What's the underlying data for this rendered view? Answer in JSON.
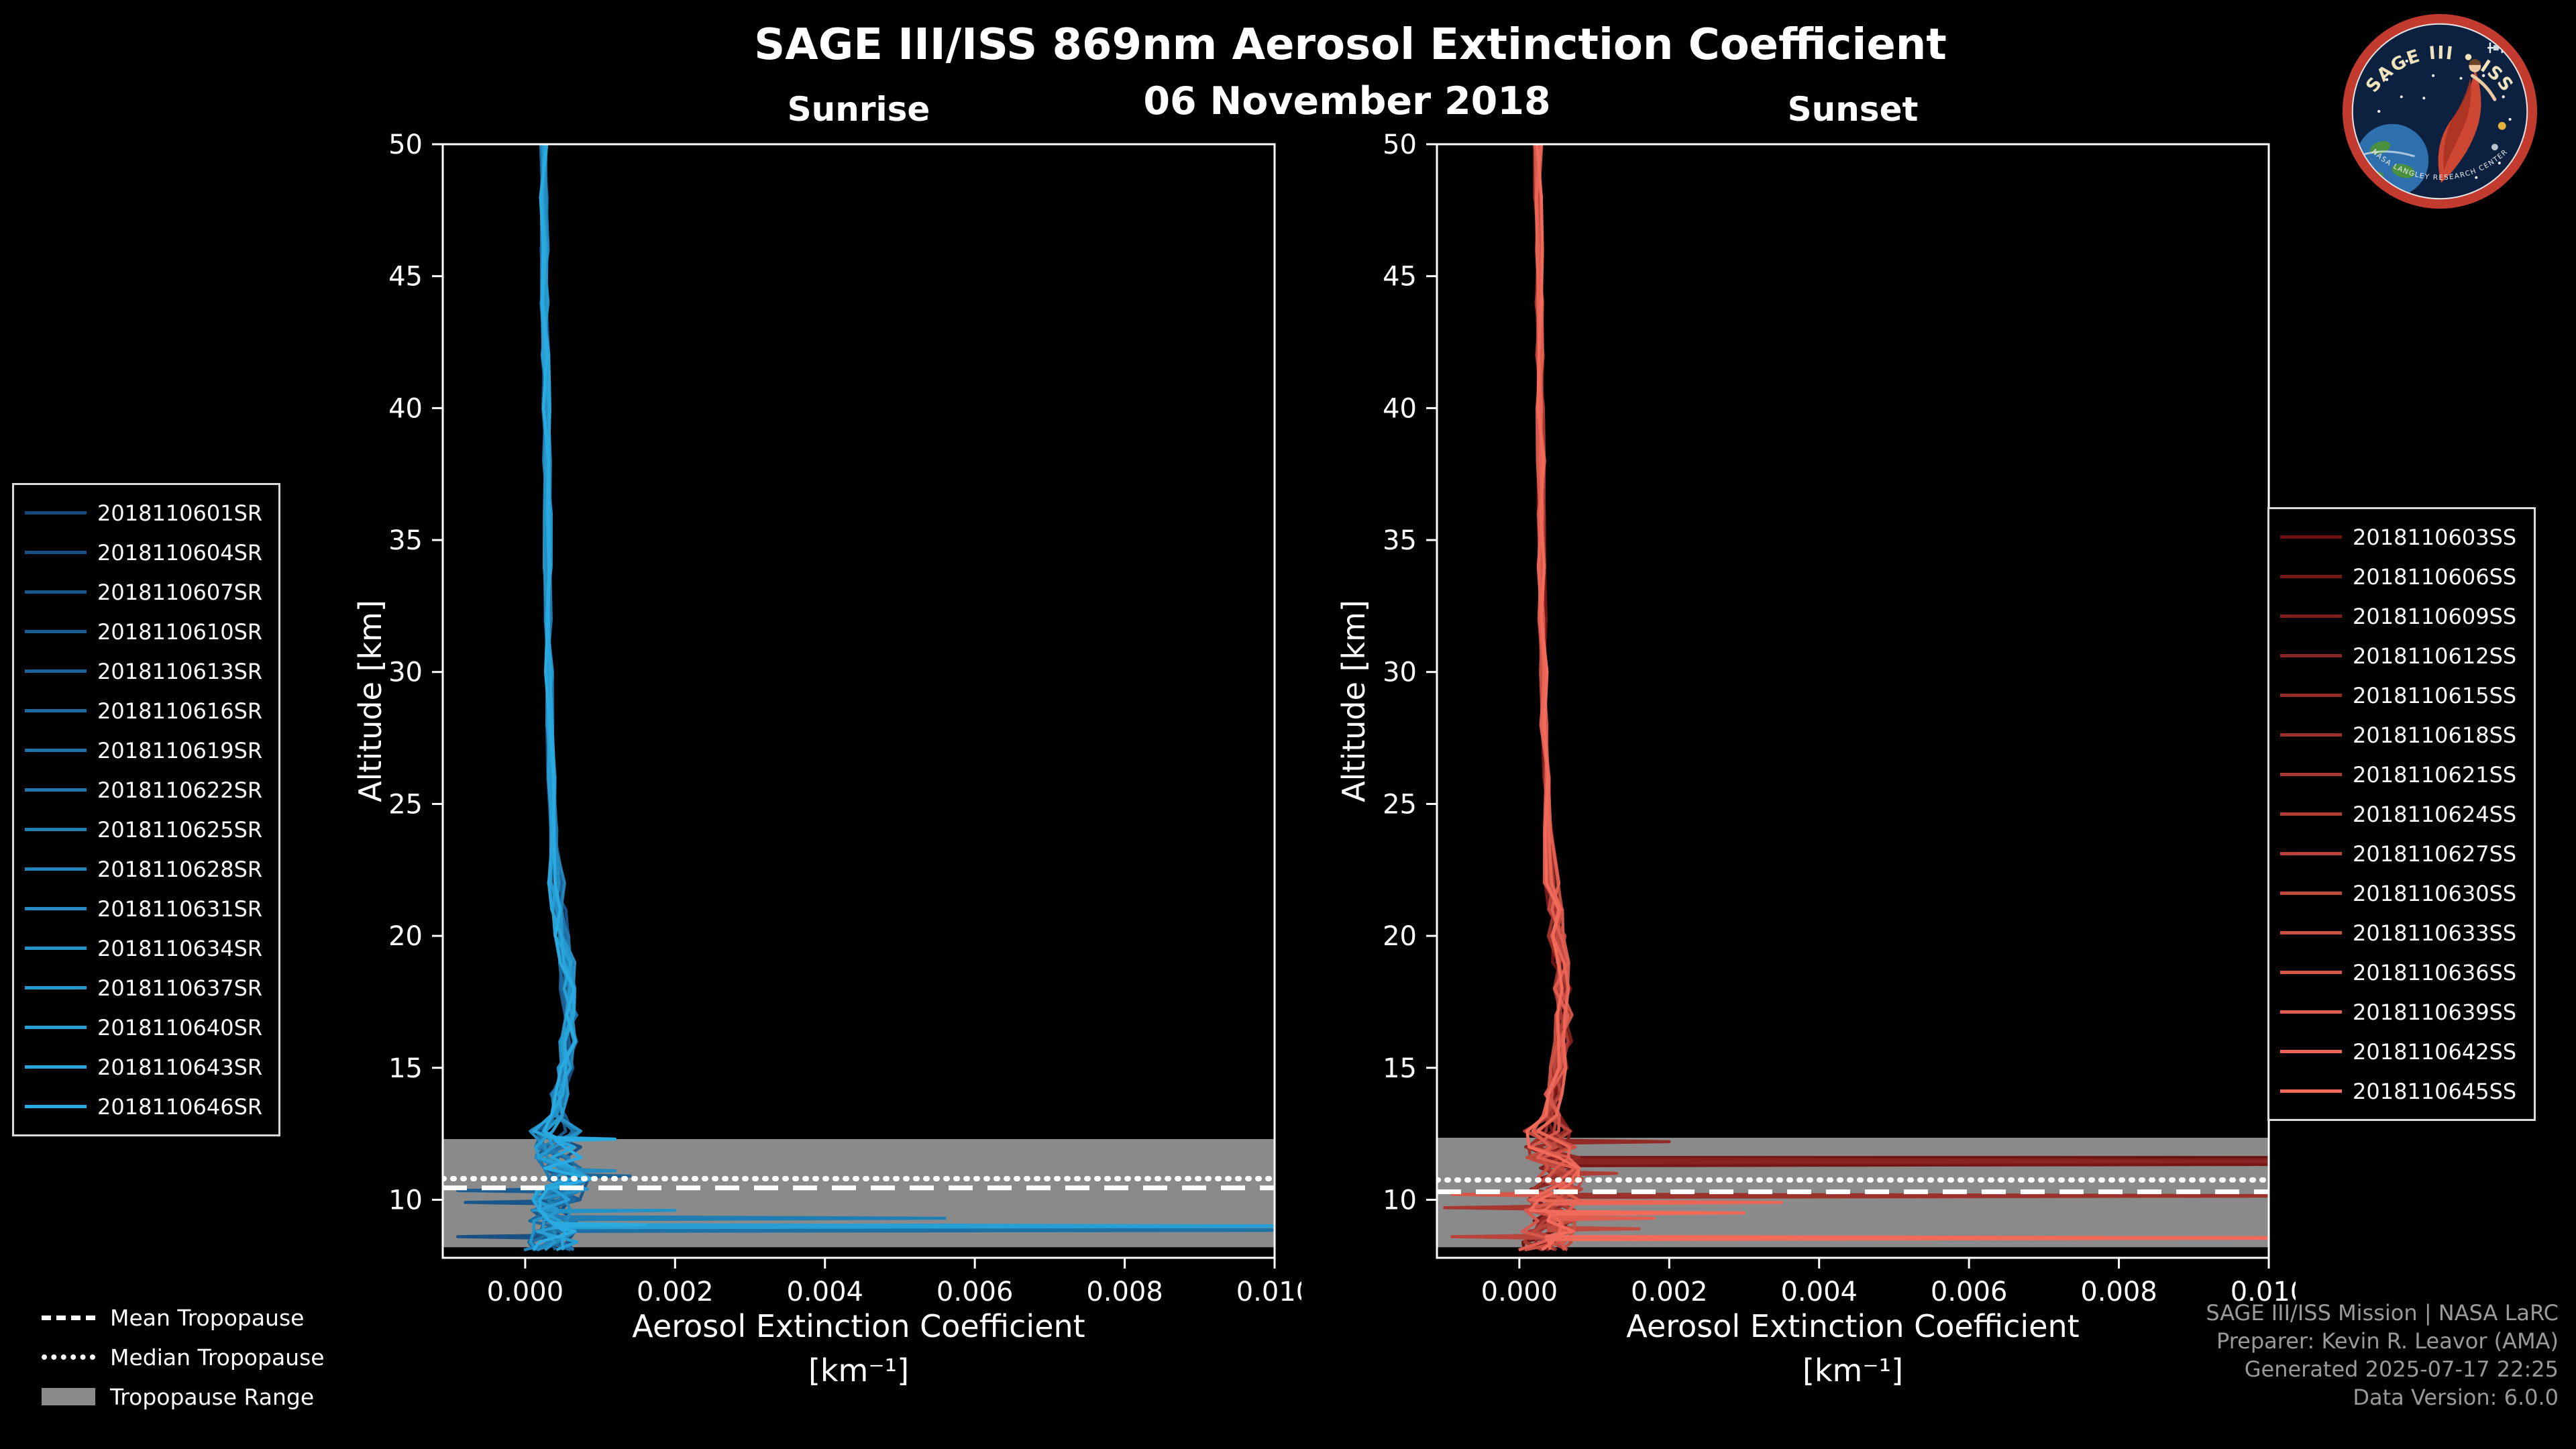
{
  "header": {
    "title": "SAGE III/ISS 869nm Aerosol Extinction Coefficient",
    "date": "06 November 2018"
  },
  "legend_tropopause": {
    "items": [
      {
        "style": "dashed",
        "label": "Mean Tropopause"
      },
      {
        "style": "dotted",
        "label": "Median Tropopause"
      },
      {
        "style": "band",
        "label": "Tropopause Range"
      }
    ]
  },
  "footer": {
    "lines": [
      "SAGE III/ISS Mission | NASA LaRC",
      "Preparer: Kevin R. Leavor (AMA)",
      "Generated 2025-07-17 22:25",
      "Data Version: 6.0.0"
    ]
  },
  "logo": {
    "title": "SAGE III • ISS",
    "arc_text": "NASA LANGLEY RESEARCH CENTER"
  },
  "chart_data": {
    "type": "line",
    "xlabel": "Aerosol Extinction Coefficient",
    "xlabel_units": "[km⁻¹]",
    "ylabel": "Altitude [km]",
    "xlim": [
      -0.0011,
      0.01
    ],
    "ylim": [
      7.8,
      50
    ],
    "xticks": [
      0,
      0.002,
      0.004,
      0.006,
      0.008,
      0.01
    ],
    "yticks": [
      10,
      15,
      20,
      25,
      30,
      35,
      40,
      45,
      50
    ],
    "grid": false,
    "legend_position": "outside",
    "tropopause_band_color": "#8a8a8a",
    "scatter": {
      "upper": 5e-05,
      "mid": 0.00012,
      "lower": 0.00035
    },
    "base_profile": [
      [
        50,
        0.00025
      ],
      [
        48,
        0.00025
      ],
      [
        46,
        0.00026
      ],
      [
        44,
        0.00026
      ],
      [
        42,
        0.00027
      ],
      [
        40,
        0.00028
      ],
      [
        38,
        0.00029
      ],
      [
        36,
        0.0003
      ],
      [
        34,
        0.0003
      ],
      [
        32,
        0.00031
      ],
      [
        30,
        0.00032
      ],
      [
        28,
        0.00033
      ],
      [
        26,
        0.00035
      ],
      [
        24,
        0.00038
      ],
      [
        22,
        0.00042
      ],
      [
        21,
        0.00046
      ],
      [
        20,
        0.0005
      ],
      [
        19,
        0.00055
      ],
      [
        18,
        0.00058
      ],
      [
        17,
        0.0006
      ],
      [
        16,
        0.00058
      ],
      [
        15,
        0.00052
      ],
      [
        14,
        0.00046
      ],
      [
        13.2,
        0.00042
      ],
      [
        12.6,
        0.0004
      ],
      [
        12,
        0.00042
      ],
      [
        11.6,
        0.00045
      ],
      [
        11.2,
        0.0005
      ],
      [
        10.8,
        0.00055
      ],
      [
        10.4,
        0.0005
      ],
      [
        10,
        0.00045
      ],
      [
        9.6,
        0.00042
      ],
      [
        9.2,
        0.0004
      ],
      [
        8.8,
        0.00038
      ],
      [
        8.4,
        0.00035
      ],
      [
        8.1,
        0.0003
      ]
    ],
    "panels": [
      {
        "id": "sunrise",
        "title": "Sunrise",
        "tropopause": {
          "range": [
            8.2,
            12.3
          ],
          "mean": 10.45,
          "median": 10.8
        },
        "series": [
          {
            "name": "2018110601SR",
            "color": "#174A7C",
            "spikes": []
          },
          {
            "name": "2018110604SR",
            "color": "#185083",
            "spikes": [
              [
                8.6,
                -0.0009
              ]
            ]
          },
          {
            "name": "2018110607SR",
            "color": "#19578A",
            "spikes": [
              [
                9.9,
                -0.0008
              ]
            ]
          },
          {
            "name": "2018110610SR",
            "color": "#1B5D90",
            "spikes": [
              [
                10.35,
                -0.0009
              ]
            ]
          },
          {
            "name": "2018110613SR",
            "color": "#1C6497",
            "spikes": [
              [
                10.9,
                0.0014
              ]
            ]
          },
          {
            "name": "2018110616SR",
            "color": "#1D6A9E",
            "spikes": []
          },
          {
            "name": "2018110619SR",
            "color": "#1E71A5",
            "spikes": [
              [
                8.85,
                0.0125
              ]
            ]
          },
          {
            "name": "2018110622SR",
            "color": "#1F77AC",
            "spikes": []
          },
          {
            "name": "2018110625SR",
            "color": "#217EB2",
            "spikes": [
              [
                9.3,
                0.0056
              ]
            ]
          },
          {
            "name": "2018110628SR",
            "color": "#2284B9",
            "spikes": []
          },
          {
            "name": "2018110631SR",
            "color": "#238BC0",
            "spikes": [
              [
                11.1,
                0.0012
              ]
            ]
          },
          {
            "name": "2018110634SR",
            "color": "#2491C7",
            "spikes": [
              [
                9.6,
                0.002
              ]
            ]
          },
          {
            "name": "2018110637SR",
            "color": "#2598CE",
            "spikes": []
          },
          {
            "name": "2018110640SR",
            "color": "#279ED4",
            "spikes": [
              [
                9.0,
                0.0125
              ]
            ]
          },
          {
            "name": "2018110643SR",
            "color": "#28A5DB",
            "spikes": []
          },
          {
            "name": "2018110646SR",
            "color": "#29ABE2",
            "spikes": [
              [
                12.3,
                0.0012
              ],
              [
                9.05,
                0.0016
              ]
            ]
          }
        ]
      },
      {
        "id": "sunset",
        "title": "Sunset",
        "tropopause": {
          "range": [
            8.2,
            12.35
          ],
          "mean": 10.3,
          "median": 10.75
        },
        "series": [
          {
            "name": "2018110603SS",
            "color": "#6B1111",
            "spikes": [
              [
                11.6,
                0.0125
              ]
            ]
          },
          {
            "name": "2018110606SS",
            "color": "#751716",
            "spikes": [
              [
                11.35,
                0.0125
              ]
            ]
          },
          {
            "name": "2018110609SS",
            "color": "#7E1E1B",
            "spikes": [
              [
                11.5,
                0.0125
              ]
            ]
          },
          {
            "name": "2018110612SS",
            "color": "#882421",
            "spikes": [
              [
                11.45,
                0.0125
              ]
            ]
          },
          {
            "name": "2018110615SS",
            "color": "#922B26",
            "spikes": [
              [
                12.2,
                0.002
              ]
            ]
          },
          {
            "name": "2018110618SS",
            "color": "#9B312B",
            "spikes": [
              [
                10.15,
                0.0125
              ]
            ]
          },
          {
            "name": "2018110621SS",
            "color": "#A53830",
            "spikes": [
              [
                9.7,
                -0.001
              ]
            ]
          },
          {
            "name": "2018110624SS",
            "color": "#AF3E36",
            "spikes": [
              [
                11.0,
                0.0013
              ]
            ]
          },
          {
            "name": "2018110627SS",
            "color": "#B8443B",
            "spikes": [
              [
                8.6,
                -0.0009
              ]
            ]
          },
          {
            "name": "2018110630SS",
            "color": "#C24B40",
            "spikes": [
              [
                8.9,
                0.0016
              ]
            ]
          },
          {
            "name": "2018110633SS",
            "color": "#CC5145",
            "spikes": []
          },
          {
            "name": "2018110636SS",
            "color": "#D5584A",
            "spikes": [
              [
                10.2,
                -0.0009
              ]
            ]
          },
          {
            "name": "2018110639SS",
            "color": "#DF5E50",
            "spikes": [
              [
                9.3,
                0.0018
              ]
            ]
          },
          {
            "name": "2018110642SS",
            "color": "#E96555",
            "spikes": [
              [
                9.9,
                0.0035
              ]
            ]
          },
          {
            "name": "2018110645SS",
            "color": "#F26B5A",
            "spikes": [
              [
                9.5,
                0.003
              ],
              [
                8.55,
                0.0125
              ]
            ]
          }
        ]
      }
    ]
  }
}
